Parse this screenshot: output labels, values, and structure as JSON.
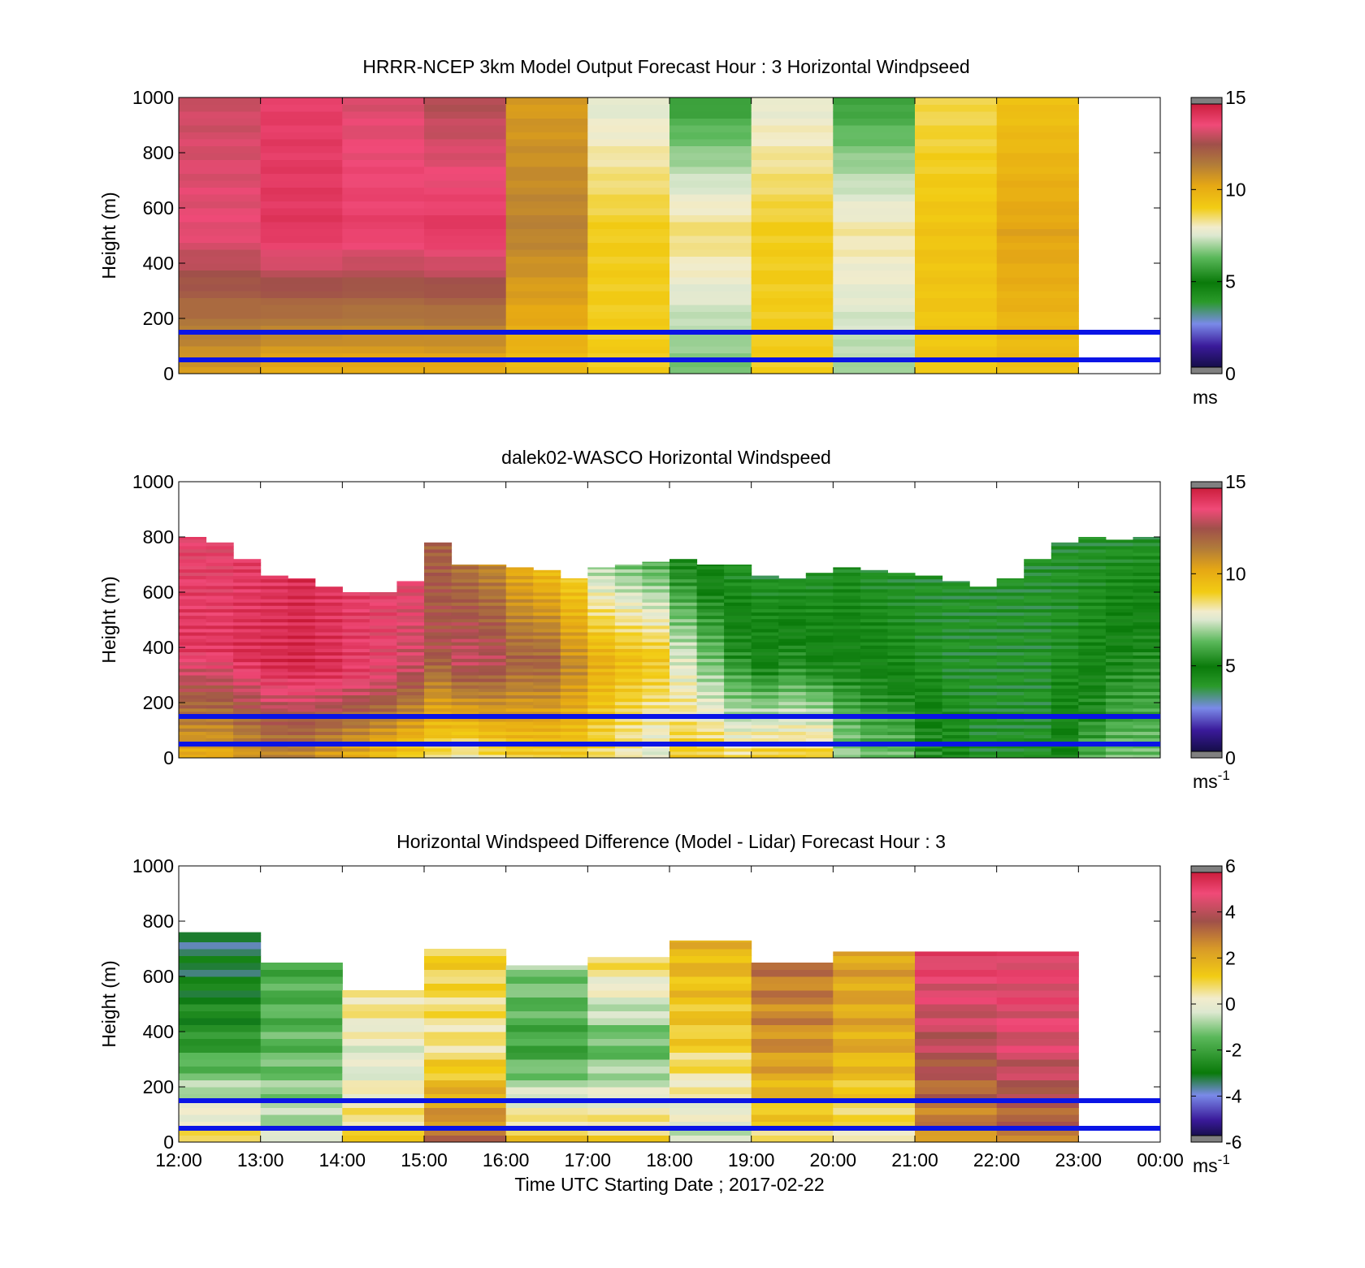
{
  "chart_data": [
    {
      "type": "heatmap",
      "title": "HRRR-NCEP 3km Model Output   Forecast Hour : 3 Horizontal Windpseed",
      "ylabel": "Height (m)",
      "xlabel": "",
      "ylim": [
        0,
        1000
      ],
      "yticks": [
        "0",
        "200",
        "400",
        "600",
        "800",
        "1000"
      ],
      "colorbar": {
        "min": 0,
        "max": 15,
        "ticks": [
          "0",
          "5",
          "10",
          "15"
        ],
        "unit": "ms",
        "unit_sup": "",
        "scale": "speed"
      },
      "reference_lines_m": [
        50,
        150
      ],
      "hours": [
        "12:00",
        "13:00",
        "14:00",
        "15:00",
        "16:00",
        "17:00",
        "18:00",
        "19:00",
        "20:00",
        "21:00",
        "22:00",
        "23:00"
      ],
      "profiles": [
        {
          "time": "12:00",
          "top": 1000,
          "value_top": 13.0,
          "value_mid": 13.4,
          "value_bottom": 10.5
        },
        {
          "time": "13:00",
          "top": 1000,
          "value_top": 13.8,
          "value_mid": 14.0,
          "value_bottom": 10.0
        },
        {
          "time": "14:00",
          "top": 1000,
          "value_top": 13.2,
          "value_mid": 13.8,
          "value_bottom": 10.0
        },
        {
          "time": "15:00",
          "top": 1000,
          "value_top": 12.6,
          "value_mid": 14.0,
          "value_bottom": 10.0
        },
        {
          "time": "16:00",
          "top": 1000,
          "value_top": 10.5,
          "value_mid": 11.2,
          "value_bottom": 9.5
        },
        {
          "time": "17:00",
          "top": 1000,
          "value_top": 7.5,
          "value_mid": 9.0,
          "value_bottom": 9.0
        },
        {
          "time": "18:00",
          "top": 1000,
          "value_top": 5.5,
          "value_mid": 8.5,
          "value_bottom": 6.5
        },
        {
          "time": "19:00",
          "top": 1000,
          "value_top": 7.6,
          "value_mid": 9.0,
          "value_bottom": 9.0
        },
        {
          "time": "20:00",
          "top": 1000,
          "value_top": 5.6,
          "value_mid": 8.2,
          "value_bottom": 7.0
        },
        {
          "time": "21:00",
          "top": 1000,
          "value_top": 8.6,
          "value_mid": 9.3,
          "value_bottom": 9.2
        },
        {
          "time": "22:00",
          "top": 1000,
          "value_top": 9.3,
          "value_mid": 10.3,
          "value_bottom": 9.5
        }
      ]
    },
    {
      "type": "heatmap",
      "title": "dalek02-WASCO  Horizontal Windspeed",
      "ylabel": "Height (m)",
      "xlabel": "",
      "ylim": [
        0,
        1000
      ],
      "yticks": [
        "0",
        "200",
        "400",
        "600",
        "800",
        "1000"
      ],
      "colorbar": {
        "min": 0,
        "max": 15,
        "ticks": [
          "0",
          "5",
          "10",
          "15"
        ],
        "unit": "ms",
        "unit_sup": "-1",
        "scale": "speed"
      },
      "reference_lines_m": [
        50,
        150
      ],
      "profiles": [
        {
          "time": "12:00",
          "top": 800,
          "value_top": 13.5,
          "value_mid": 14.0,
          "value_bottom": 10.0
        },
        {
          "time": "12:20",
          "top": 780,
          "value_top": 13.5,
          "value_mid": 14.0,
          "value_bottom": 10.0
        },
        {
          "time": "12:40",
          "top": 720,
          "value_top": 13.8,
          "value_mid": 14.2,
          "value_bottom": 10.5
        },
        {
          "time": "13:00",
          "top": 660,
          "value_top": 14.0,
          "value_mid": 14.3,
          "value_bottom": 11.0
        },
        {
          "time": "13:20",
          "top": 650,
          "value_top": 14.2,
          "value_mid": 14.4,
          "value_bottom": 11.0
        },
        {
          "time": "13:40",
          "top": 620,
          "value_top": 14.0,
          "value_mid": 14.2,
          "value_bottom": 10.5
        },
        {
          "time": "14:00",
          "top": 600,
          "value_top": 13.8,
          "value_mid": 13.8,
          "value_bottom": 10.0
        },
        {
          "time": "14:20",
          "top": 600,
          "value_top": 13.6,
          "value_mid": 13.5,
          "value_bottom": 9.5
        },
        {
          "time": "14:40",
          "top": 640,
          "value_top": 13.5,
          "value_mid": 13.0,
          "value_bottom": 9.0
        },
        {
          "time": "15:00",
          "top": 780,
          "value_top": 12.0,
          "value_mid": 12.5,
          "value_bottom": 8.5
        },
        {
          "time": "15:20",
          "top": 700,
          "value_top": 11.5,
          "value_mid": 13.0,
          "value_bottom": 8.0
        },
        {
          "time": "15:40",
          "top": 700,
          "value_top": 11.0,
          "value_mid": 12.8,
          "value_bottom": 8.5
        },
        {
          "time": "16:00",
          "top": 690,
          "value_top": 10.0,
          "value_mid": 12.0,
          "value_bottom": 9.0
        },
        {
          "time": "16:20",
          "top": 680,
          "value_top": 9.5,
          "value_mid": 12.0,
          "value_bottom": 9.0
        },
        {
          "time": "16:40",
          "top": 650,
          "value_top": 9.0,
          "value_mid": 11.0,
          "value_bottom": 9.0
        },
        {
          "time": "17:00",
          "top": 690,
          "value_top": 7.0,
          "value_mid": 10.0,
          "value_bottom": 8.5
        },
        {
          "time": "17:20",
          "top": 700,
          "value_top": 6.5,
          "value_mid": 9.5,
          "value_bottom": 8.0
        },
        {
          "time": "17:40",
          "top": 710,
          "value_top": 6.0,
          "value_mid": 9.2,
          "value_bottom": 7.5
        },
        {
          "time": "18:00",
          "top": 720,
          "value_top": 5.0,
          "value_mid": 7.5,
          "value_bottom": 9.0
        },
        {
          "time": "18:20",
          "top": 700,
          "value_top": 4.5,
          "value_mid": 6.5,
          "value_bottom": 9.0
        },
        {
          "time": "18:40",
          "top": 700,
          "value_top": 4.0,
          "value_mid": 5.5,
          "value_bottom": 8.5
        },
        {
          "time": "19:00",
          "top": 660,
          "value_top": 4.0,
          "value_mid": 5.0,
          "value_bottom": 9.0
        },
        {
          "time": "19:20",
          "top": 650,
          "value_top": 4.0,
          "value_mid": 5.5,
          "value_bottom": 9.0
        },
        {
          "time": "19:40",
          "top": 670,
          "value_top": 4.0,
          "value_mid": 5.0,
          "value_bottom": 9.0
        },
        {
          "time": "20:00",
          "top": 690,
          "value_top": 4.2,
          "value_mid": 5.0,
          "value_bottom": 7.0
        },
        {
          "time": "20:20",
          "top": 680,
          "value_top": 4.0,
          "value_mid": 4.8,
          "value_bottom": 6.5
        },
        {
          "time": "20:40",
          "top": 670,
          "value_top": 4.0,
          "value_mid": 4.5,
          "value_bottom": 6.5
        },
        {
          "time": "21:00",
          "top": 660,
          "value_top": 4.0,
          "value_mid": 4.2,
          "value_bottom": 5.5
        },
        {
          "time": "21:20",
          "top": 640,
          "value_top": 4.0,
          "value_mid": 4.0,
          "value_bottom": 4.5
        },
        {
          "time": "21:40",
          "top": 620,
          "value_top": 4.0,
          "value_mid": 4.0,
          "value_bottom": 4.0
        },
        {
          "time": "22:00",
          "top": 650,
          "value_top": 4.0,
          "value_mid": 4.0,
          "value_bottom": 4.0
        },
        {
          "time": "22:20",
          "top": 720,
          "value_top": 4.0,
          "value_mid": 4.0,
          "value_bottom": 4.0
        },
        {
          "time": "22:40",
          "top": 780,
          "value_top": 4.0,
          "value_mid": 4.2,
          "value_bottom": 5.0
        },
        {
          "time": "23:00",
          "top": 800,
          "value_top": 4.0,
          "value_mid": 4.5,
          "value_bottom": 6.0
        },
        {
          "time": "23:20",
          "top": 790,
          "value_top": 4.0,
          "value_mid": 5.0,
          "value_bottom": 6.5
        },
        {
          "time": "23:40",
          "top": 800,
          "value_top": 4.0,
          "value_mid": 5.2,
          "value_bottom": 6.5
        }
      ]
    },
    {
      "type": "heatmap",
      "title": "Horizontal Windspeed Difference (Model - Lidar) Forecast Hour : 3",
      "ylabel": "Height (m)",
      "xlabel": "Time UTC  Starting Date ; 2017-02-22",
      "ylim": [
        0,
        1000
      ],
      "yticks": [
        "0",
        "200",
        "400",
        "600",
        "800",
        "1000"
      ],
      "xticks": [
        "12:00",
        "13:00",
        "14:00",
        "15:00",
        "16:00",
        "17:00",
        "18:00",
        "19:00",
        "20:00",
        "21:00",
        "22:00",
        "23:00",
        "00:00"
      ],
      "colorbar": {
        "min": -6,
        "max": 6,
        "ticks": [
          "-6",
          "-4",
          "-2",
          "0",
          "2",
          "4",
          "6"
        ],
        "unit": "ms",
        "unit_sup": "-1",
        "scale": "diff"
      },
      "reference_lines_m": [
        50,
        150
      ],
      "profiles": [
        {
          "time": "12:00",
          "top": 760,
          "value_top": -3.5,
          "value_mid": -2.5,
          "value_bottom": 0.8
        },
        {
          "time": "13:00",
          "top": 650,
          "value_top": -1.8,
          "value_mid": -1.5,
          "value_bottom": -0.5
        },
        {
          "time": "14:00",
          "top": 550,
          "value_top": 0.8,
          "value_mid": -0.3,
          "value_bottom": 1.0
        },
        {
          "time": "15:00",
          "top": 700,
          "value_top": 1.2,
          "value_mid": 0.5,
          "value_bottom": 3.0
        },
        {
          "time": "16:00",
          "top": 640,
          "value_top": -1.0,
          "value_mid": -2.0,
          "value_bottom": 1.2
        },
        {
          "time": "17:00",
          "top": 670,
          "value_top": 1.0,
          "value_mid": -1.5,
          "value_bottom": 1.0
        },
        {
          "time": "18:00",
          "top": 730,
          "value_top": 1.8,
          "value_mid": 1.2,
          "value_bottom": -0.5
        },
        {
          "time": "19:00",
          "top": 650,
          "value_top": 3.0,
          "value_mid": 2.5,
          "value_bottom": 0.8
        },
        {
          "time": "20:00",
          "top": 690,
          "value_top": 2.2,
          "value_mid": 2.0,
          "value_bottom": 0.5
        },
        {
          "time": "21:00",
          "top": 690,
          "value_top": 5.0,
          "value_mid": 4.0,
          "value_bottom": 2.5
        },
        {
          "time": "22:00",
          "top": 690,
          "value_top": 4.8,
          "value_mid": 4.5,
          "value_bottom": 3.0
        }
      ]
    }
  ]
}
